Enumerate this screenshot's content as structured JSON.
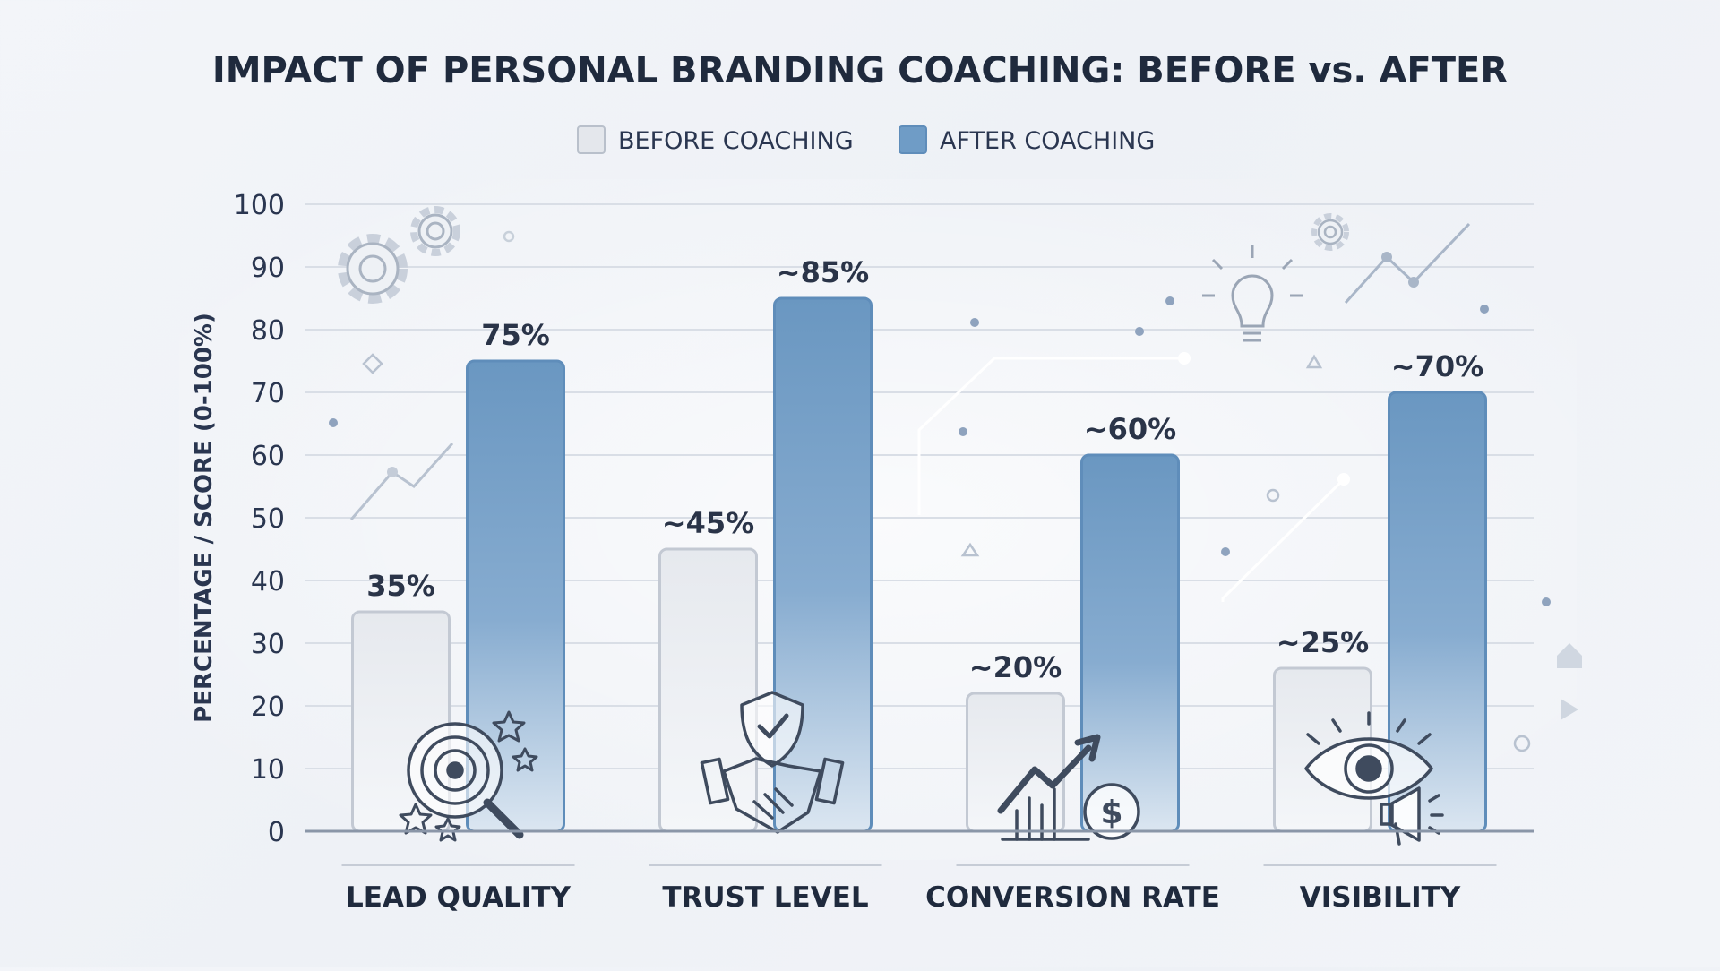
{
  "chart_data": {
    "type": "bar",
    "title": "IMPACT OF PERSONAL BRANDING COACHING: BEFORE vs. AFTER",
    "ylabel": "PERCENTAGE / SCORE (0-100%)",
    "xlabel": "",
    "ylim": [
      0,
      100
    ],
    "yticks": [
      0,
      10,
      20,
      30,
      40,
      50,
      60,
      70,
      80,
      90,
      100
    ],
    "grid": true,
    "legend_position": "top-center",
    "categories": [
      "LEAD QUALITY",
      "TRUST LEVEL",
      "CONVERSION RATE",
      "VISIBILITY"
    ],
    "category_icons": [
      "target-icon",
      "shield-handshake-icon",
      "growth-dollar-icon",
      "eye-megaphone-icon"
    ],
    "series": [
      {
        "name": "BEFORE COACHING",
        "color": "#e4e7ec",
        "values": [
          35,
          45,
          22,
          26
        ],
        "labels": [
          "35%",
          "~45%",
          "~20%",
          "~25%"
        ]
      },
      {
        "name": "AFTER COACHING",
        "color": "#6f9cc6",
        "values": [
          75,
          85,
          60,
          70
        ],
        "labels": [
          "75%",
          "~85%",
          "~60%",
          "~70%"
        ]
      }
    ]
  }
}
